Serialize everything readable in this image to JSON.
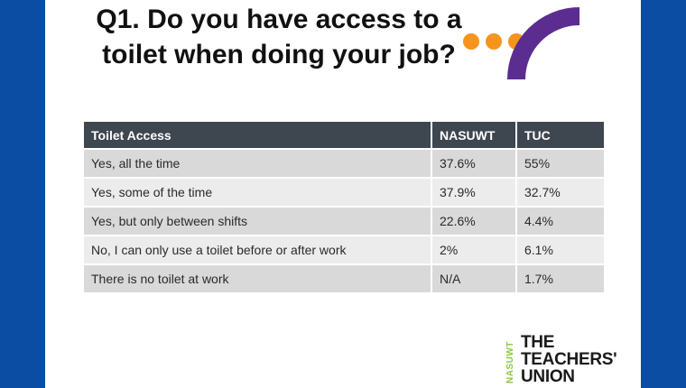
{
  "slide": {
    "title_line1": "Q1. Do you have access to a",
    "title_line2": "toilet when doing your job?"
  },
  "table": {
    "headers": [
      "Toilet Access",
      "NASUWT",
      "TUC"
    ],
    "rows": [
      [
        "Yes, all the time",
        "37.6%",
        "55%"
      ],
      [
        "Yes, some of the time",
        "37.9%",
        "32.7%"
      ],
      [
        "Yes, but only between shifts",
        "22.6%",
        "4.4%"
      ],
      [
        "No, I can only use a toilet before or after work",
        "2%",
        "6.1%"
      ],
      [
        "There is no toilet at work",
        "N/A",
        "1.7%"
      ]
    ]
  },
  "logo": {
    "side": "NASUWT",
    "line1": "THE",
    "line2": "TEACHERS'",
    "line3": "UNION"
  },
  "colors": {
    "background": "#0a4da2",
    "header": "#3e4650",
    "row_odd": "#d9d9d9",
    "row_even": "#ececec",
    "accent_purple": "#5b2d91",
    "accent_orange": "#f7941d",
    "logo_green": "#8dc63f"
  }
}
